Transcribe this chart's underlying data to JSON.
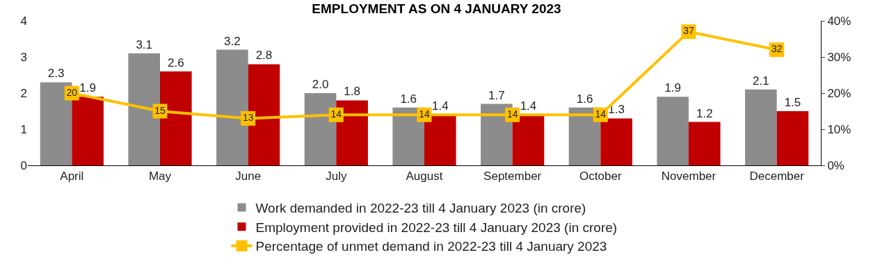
{
  "chart_data": {
    "type": "bar",
    "title": "EMPLOYMENT AS ON 4 JANUARY 2023",
    "categories": [
      "April",
      "May",
      "June",
      "July",
      "August",
      "September",
      "October",
      "November",
      "December"
    ],
    "series": [
      {
        "name": "Work demanded in 2022-23 till 4 January 2023 (in crore)",
        "color": "#8c8c8c",
        "values": [
          2.3,
          3.1,
          3.2,
          2.0,
          1.6,
          1.7,
          1.6,
          1.9,
          2.1
        ],
        "value_labels": [
          "2.3",
          "3.1",
          "3.2",
          "2.0",
          "1.6",
          "1.7",
          "1.6",
          "1.9",
          "2.1"
        ]
      },
      {
        "name": "Employment provided in 2022-23 till 4 January 2023 (in crore)",
        "color": "#c00000",
        "values": [
          1.9,
          2.6,
          2.8,
          1.8,
          1.4,
          1.4,
          1.3,
          1.2,
          1.5
        ],
        "value_labels": [
          "1.9",
          "2.6",
          "2.8",
          "1.8",
          "1.4",
          "1.4",
          "1.3",
          "1.2",
          "1.5"
        ]
      },
      {
        "name": "Percentage of unmet demand in 2022-23 till 4 January 2023",
        "type": "line",
        "axis": "y2",
        "color": "#ffc000",
        "marker": "square",
        "values": [
          20,
          15,
          13,
          14,
          14,
          14,
          14,
          37,
          32
        ],
        "value_labels": [
          "20",
          "15",
          "13",
          "14",
          "14",
          "14",
          "14",
          "37",
          "32"
        ]
      }
    ],
    "ylim": [
      0,
      4
    ],
    "yticks": [
      0,
      1,
      2,
      3,
      4
    ],
    "y2lim": [
      0,
      40
    ],
    "y2ticks": [
      {
        "value": 0,
        "label": "0%"
      },
      {
        "value": 10,
        "label": "10%"
      },
      {
        "value": 20,
        "label": "20%"
      },
      {
        "value": 30,
        "label": "30%"
      },
      {
        "value": 40,
        "label": "40%"
      }
    ],
    "grid": false,
    "legend": "bottom"
  }
}
